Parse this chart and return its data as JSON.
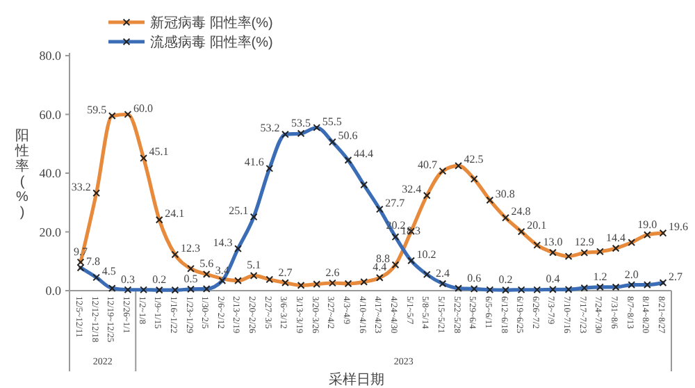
{
  "chart_data": {
    "type": "line",
    "ylabel": "阳性率(%)",
    "xlabel": "采样日期",
    "categories": [
      "12/5~12/11",
      "12/12~12/18",
      "12/19~12/25",
      "12/26~1/1",
      "1/2~1/8",
      "1/9~1/15",
      "1/16~1/22",
      "1/23~1/29",
      "1/30~2/5",
      "2/6~2/12",
      "2/13~2/19",
      "2/20~2/26",
      "2/27~3/5",
      "3/6~3/12",
      "3/13~3/19",
      "3/20~3/26",
      "3/27~4/2",
      "4/3~4/9",
      "4/10~4/16",
      "4/17~4/23",
      "4/24~4/30",
      "5/1~5/7",
      "5/8~5/14",
      "5/15~5/21",
      "5/22~5/28",
      "5/29~6/4",
      "6/5~6/11",
      "6/12~6/18",
      "6/19~6/25",
      "6/26~7/2",
      "7/3~7/9",
      "7/10~7/16",
      "7/17~7/23",
      "7/24~7/30",
      "7/31~8/6",
      "8/7~8/13",
      "8/14~8/20",
      "8/21~8/27"
    ],
    "series": [
      {
        "name": "新冠病毒 阳性率(%)",
        "color": "#e88a3c",
        "values": [
          9.7,
          33.2,
          59.5,
          60.0,
          45.1,
          24.1,
          12.3,
          7.5,
          5.6,
          null,
          3.4,
          5.1,
          3.8,
          2.7,
          1.8,
          2.2,
          2.6,
          2.4,
          3.0,
          4.4,
          8.8,
          20.2,
          32.4,
          40.7,
          42.5,
          38,
          30.8,
          24.8,
          20.1,
          15.5,
          13.0,
          11.7,
          12.9,
          13.3,
          14.4,
          16.4,
          19.0,
          19.6
        ],
        "value_labels": [
          "9.7",
          "33.2",
          "59.5",
          "60.0",
          "45.1",
          "24.1",
          "12.3",
          null,
          "5.6",
          null,
          null,
          "5.1",
          null,
          "2.7",
          null,
          null,
          "2.6",
          null,
          null,
          "4.4",
          "8.8",
          "20.2",
          "32.4",
          "40.7",
          "42.5",
          null,
          "30.8",
          "24.8",
          "20.1",
          null,
          "13.0",
          null,
          "12.9",
          null,
          "14.4",
          null,
          "19.0",
          "19.6"
        ]
      },
      {
        "name": "流感病毒 阳性率(%)",
        "color": "#3a6db5",
        "values": [
          7.8,
          4.5,
          0.8,
          0.3,
          0.3,
          0.2,
          0.2,
          0.5,
          0.6,
          3.4,
          14.3,
          25.1,
          41.6,
          53.2,
          53.5,
          55.5,
          50.6,
          44.4,
          36,
          27.7,
          18.3,
          10.2,
          5.5,
          2.4,
          0.8,
          0.6,
          0.3,
          0.2,
          0.3,
          0.3,
          0.4,
          0.4,
          0.9,
          1.2,
          1.2,
          2.0,
          2.0,
          2.7
        ],
        "value_labels": [
          "7.8",
          "4.5",
          null,
          "0.3",
          null,
          "0.2",
          null,
          "0.5",
          null,
          "3.4",
          "14.3",
          "25.1",
          "41.6",
          "53.2",
          "53.5",
          "55.5",
          "50.6",
          "44.4",
          null,
          "27.7",
          "18.3",
          "10.2",
          null,
          "2.4",
          null,
          "0.6",
          null,
          "0.2",
          null,
          null,
          "0.4",
          null,
          null,
          "1.2",
          null,
          "2.0",
          null,
          "2.7"
        ]
      }
    ],
    "ylim": [
      0,
      80
    ],
    "yticks": [
      {
        "value": 0,
        "label": "0.0"
      },
      {
        "value": 20,
        "label": "20.0"
      },
      {
        "value": 40,
        "label": "40.0"
      },
      {
        "value": 60,
        "label": "60.0"
      },
      {
        "value": 80,
        "label": "80.0"
      }
    ],
    "grid": false,
    "legend": "top left",
    "marker": "cross",
    "line_style": "solid",
    "annotations": [
      "2022",
      "2023"
    ]
  }
}
